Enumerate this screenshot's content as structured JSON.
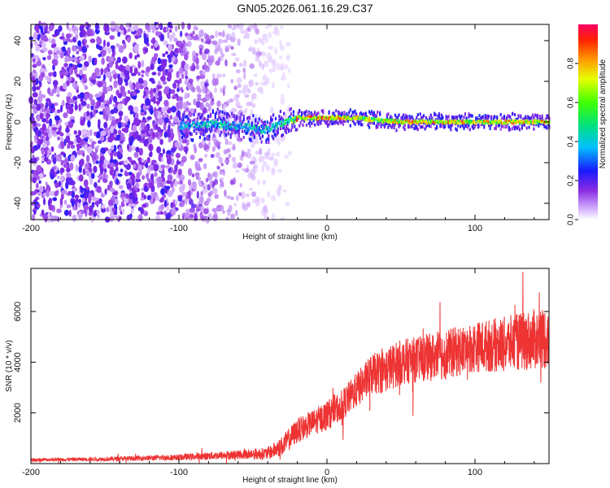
{
  "title": "GN05.2026.061.16.29.C37",
  "chart_data": [
    {
      "id": "spectrogram",
      "type": "heatmap",
      "xlabel": "Height of straight line (km)",
      "ylabel": "Frequency (Hz)",
      "xlim": [
        -200,
        150
      ],
      "ylim": [
        -48,
        48
      ],
      "xticks": [
        -200,
        -100,
        0,
        100
      ],
      "yticks": [
        -40,
        -20,
        0,
        20,
        40
      ],
      "colorbar": {
        "label": "Normalized spectral amplitude",
        "range": [
          0,
          1
        ],
        "ticks": [
          "0.0",
          "0.2",
          "0.4",
          "0.6",
          "0.8"
        ]
      },
      "ridge": {
        "description_points": [
          {
            "x": -100,
            "y": -2,
            "amp": 0.45
          },
          {
            "x": -80,
            "y": -1,
            "amp": 0.5
          },
          {
            "x": -60,
            "y": -2,
            "amp": 0.5
          },
          {
            "x": -43,
            "y": -4,
            "amp": 0.5
          },
          {
            "x": -35,
            "y": -2,
            "amp": 0.55
          },
          {
            "x": -25,
            "y": 1,
            "amp": 0.7
          },
          {
            "x": -20,
            "y": 2,
            "amp": 0.95
          },
          {
            "x": 0,
            "y": 2,
            "amp": 0.95
          },
          {
            "x": 20,
            "y": 2,
            "amp": 0.9
          },
          {
            "x": 30,
            "y": 1,
            "amp": 0.8
          },
          {
            "x": 50,
            "y": 0,
            "amp": 0.9
          },
          {
            "x": 100,
            "y": 0,
            "amp": 0.9
          },
          {
            "x": 150,
            "y": 0,
            "amp": 0.9
          }
        ]
      },
      "noise_region": {
        "x_start": -200,
        "x_end": -45
      }
    },
    {
      "id": "snr",
      "type": "line",
      "xlabel": "Height of straight line (km)",
      "ylabel": "SNR (10 * v/v)",
      "xlim": [
        -200,
        150
      ],
      "ylim": [
        0,
        7700
      ],
      "xticks": [
        -200,
        -100,
        0,
        100
      ],
      "yticks": [
        2000,
        4000,
        6000
      ],
      "series": [
        {
          "name": "SNR",
          "color": "#ee3333",
          "envelope_x": [
            -200,
            -150,
            -100,
            -60,
            -40,
            -30,
            -20,
            -10,
            0,
            10,
            20,
            30,
            40,
            50,
            60,
            80,
            100,
            120,
            140,
            150
          ],
          "envelope_y": [
            150,
            180,
            250,
            350,
            400,
            700,
            1300,
            1600,
            1900,
            2300,
            2900,
            3500,
            3700,
            4000,
            4100,
            4300,
            4600,
            4700,
            4900,
            5000
          ],
          "spread": [
            60,
            80,
            120,
            180,
            250,
            400,
            500,
            500,
            600,
            600,
            700,
            800,
            900,
            900,
            900,
            1000,
            1000,
            1100,
            1200,
            1300
          ]
        }
      ]
    }
  ]
}
